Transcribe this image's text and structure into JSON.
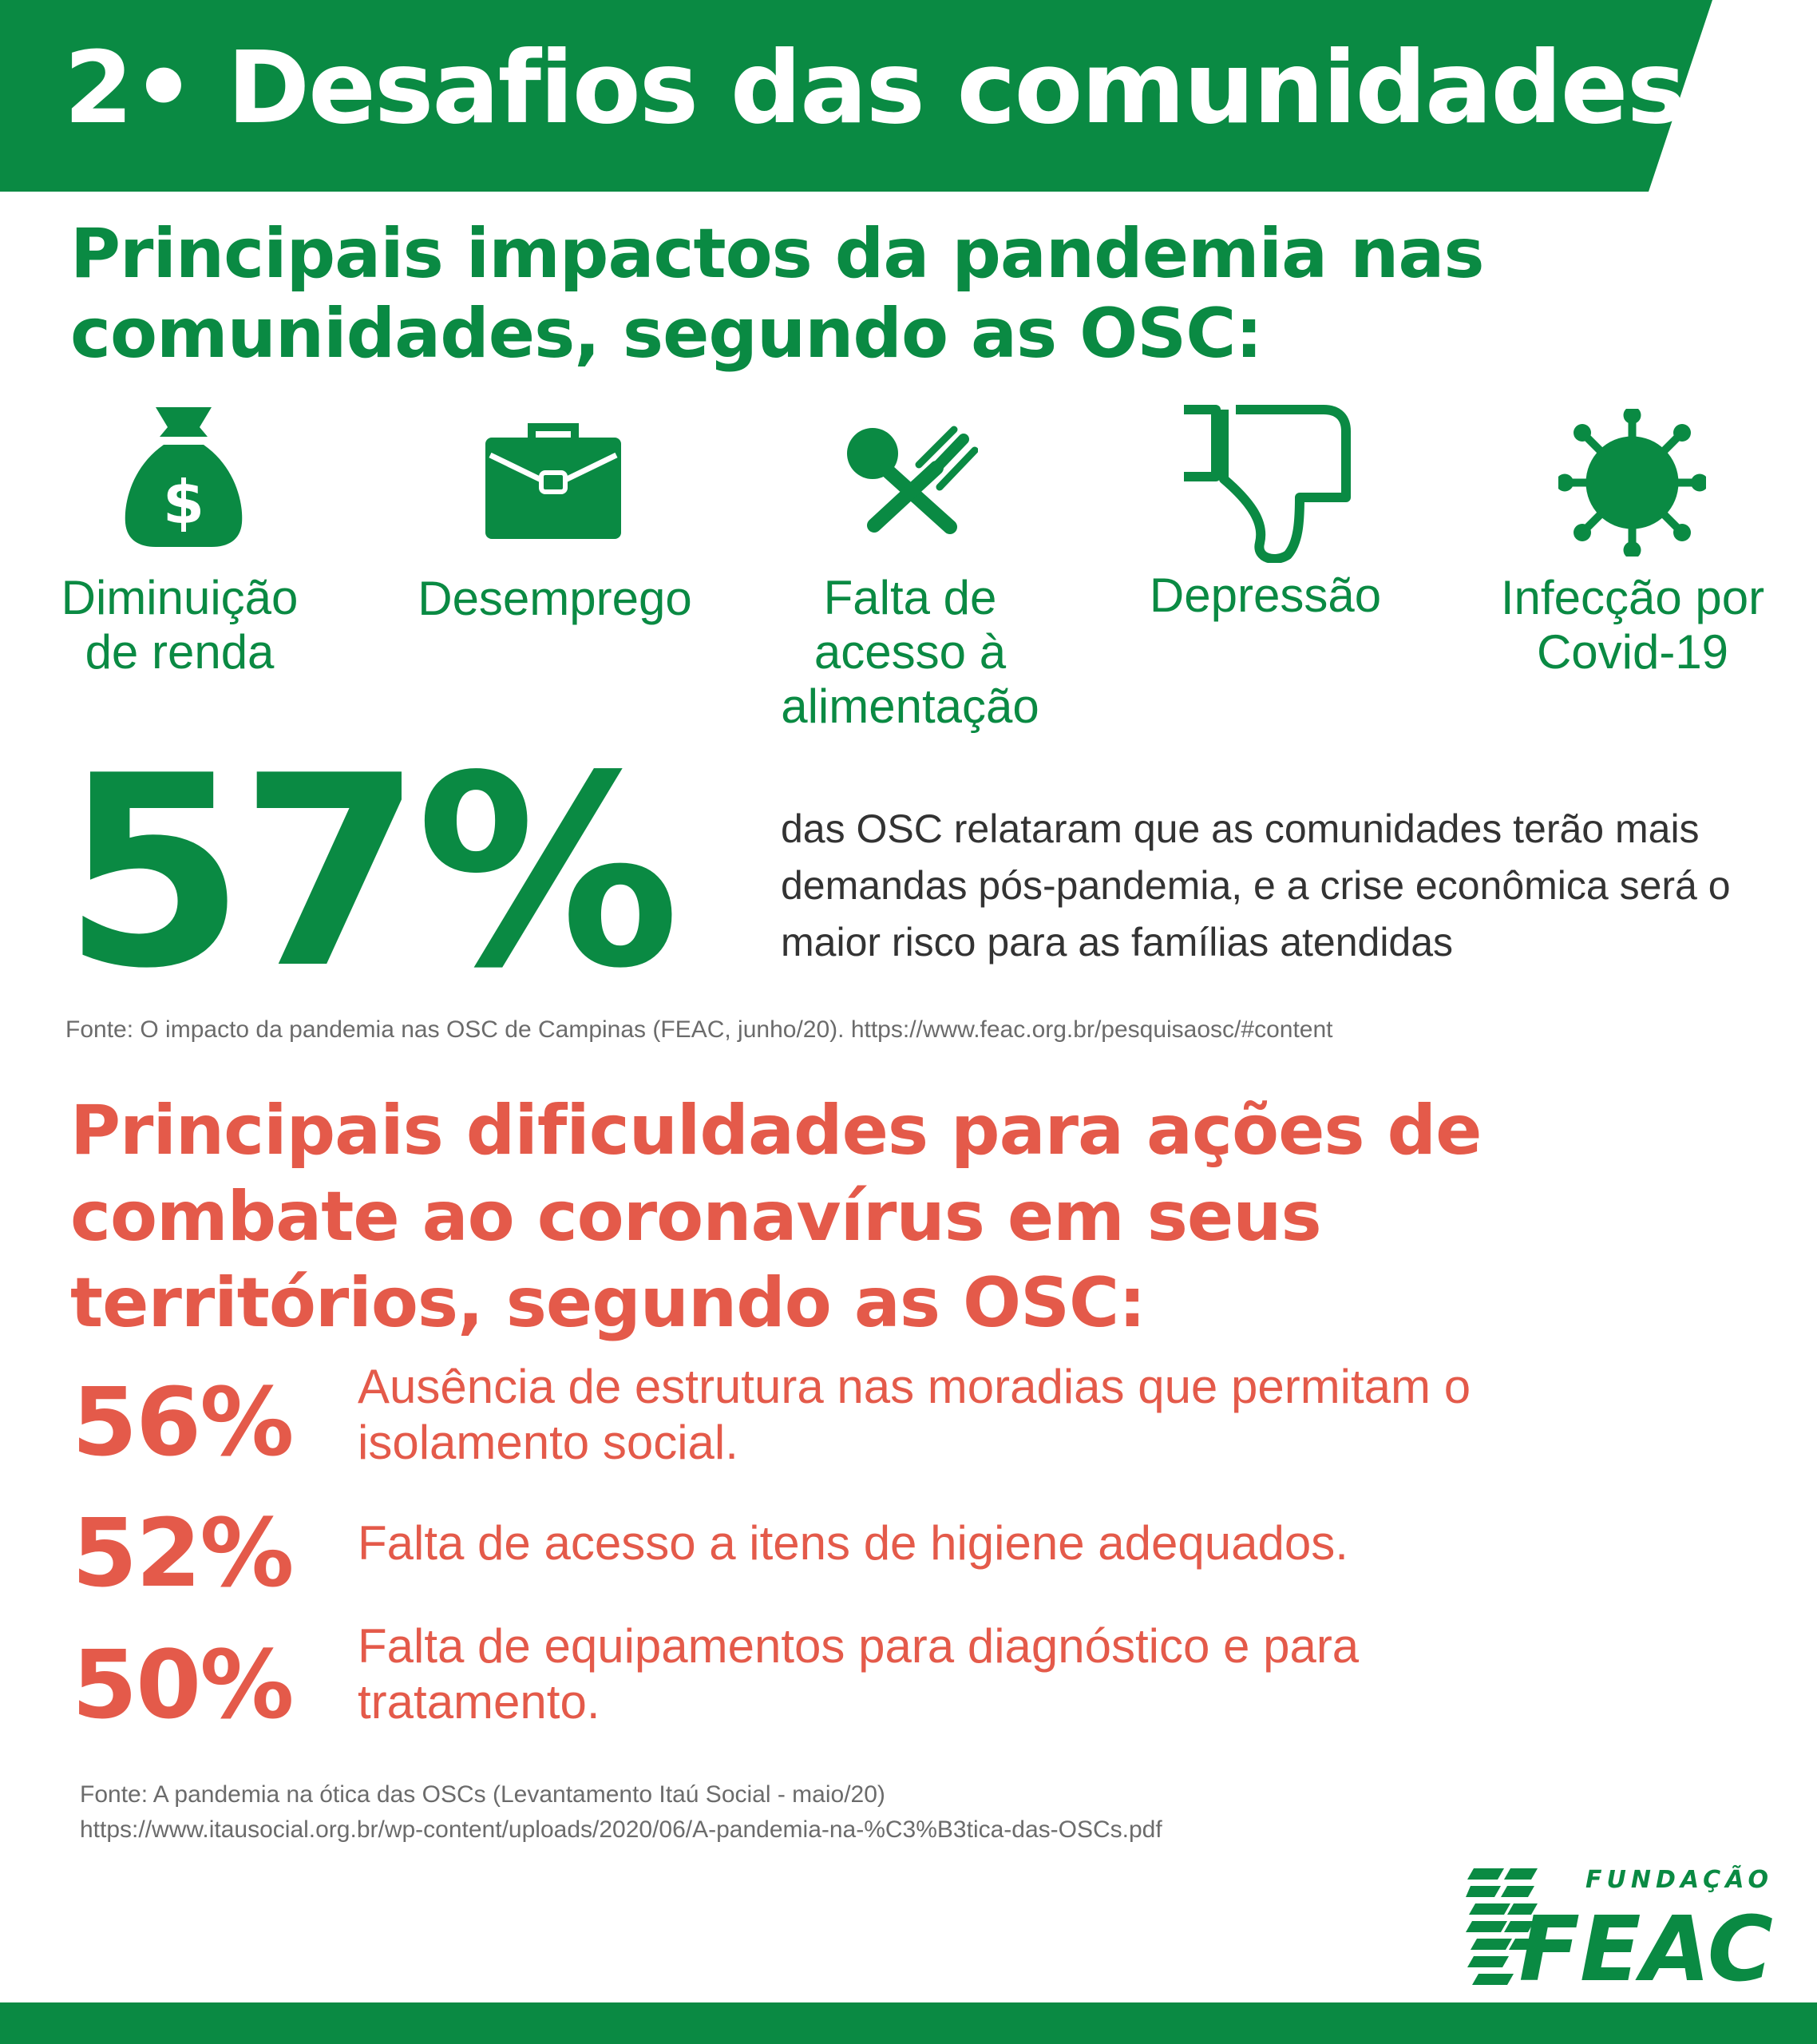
{
  "header": {
    "title": "2• Desafios das comunidades"
  },
  "impacts": {
    "title_line1": "Principais impactos da pandemia nas",
    "title_line2": "comunidades, segundo as OSC:",
    "items": [
      {
        "icon": "money-bag-icon",
        "line1": "Diminuição",
        "line2": "de renda",
        "line3": ""
      },
      {
        "icon": "briefcase-icon",
        "line1": "Desemprego",
        "line2": "",
        "line3": ""
      },
      {
        "icon": "utensils-icon",
        "line1": "Falta de",
        "line2": "acesso à",
        "line3": "alimentação"
      },
      {
        "icon": "thumbs-down-icon",
        "line1": "Depressão",
        "line2": "",
        "line3": ""
      },
      {
        "icon": "virus-icon",
        "line1": "Infecção por",
        "line2": "Covid-19",
        "line3": ""
      }
    ]
  },
  "highlight": {
    "percent": "57%",
    "description": "das OSC relataram que as comunidades terão mais demandas pós-pandemia, e a crise econômica será o maior risco para as famílias atendidas"
  },
  "source1": "Fonte: O impacto da pandemia nas OSC de Campinas (FEAC, junho/20). https://www.feac.org.br/pesquisaosc/#content",
  "difficulties": {
    "title_line1": "Principais dificuldades para ações de",
    "title_line2": "combate ao coronavírus em seus",
    "title_line3": "territórios, segundo as OSC:",
    "items": [
      {
        "percent": "56%",
        "text_line1": "Ausência de estrutura nas moradias que permitam o",
        "text_line2": "isolamento social."
      },
      {
        "percent": "52%",
        "text_line1": "Falta de acesso a itens de higiene adequados.",
        "text_line2": ""
      },
      {
        "percent": "50%",
        "text_line1": "Falta de equipamentos para diagnóstico e para",
        "text_line2": "tratamento."
      }
    ]
  },
  "source2": {
    "line1": "Fonte: A pandemia na ótica das OSCs (Levantamento Itaú Social - maio/20)",
    "line2": "https://www.itausocial.org.br/wp-content/uploads/2020/06/A-pandemia-na-%C3%B3tica-das-OSCs.pdf"
  },
  "logo": {
    "top_text": "FUNDAÇÃO",
    "main_text": "FEAC"
  },
  "colors": {
    "green": "#0a8a43",
    "red": "#e45a4a",
    "text_gray": "#333333",
    "source_gray": "#6b6b6b"
  }
}
